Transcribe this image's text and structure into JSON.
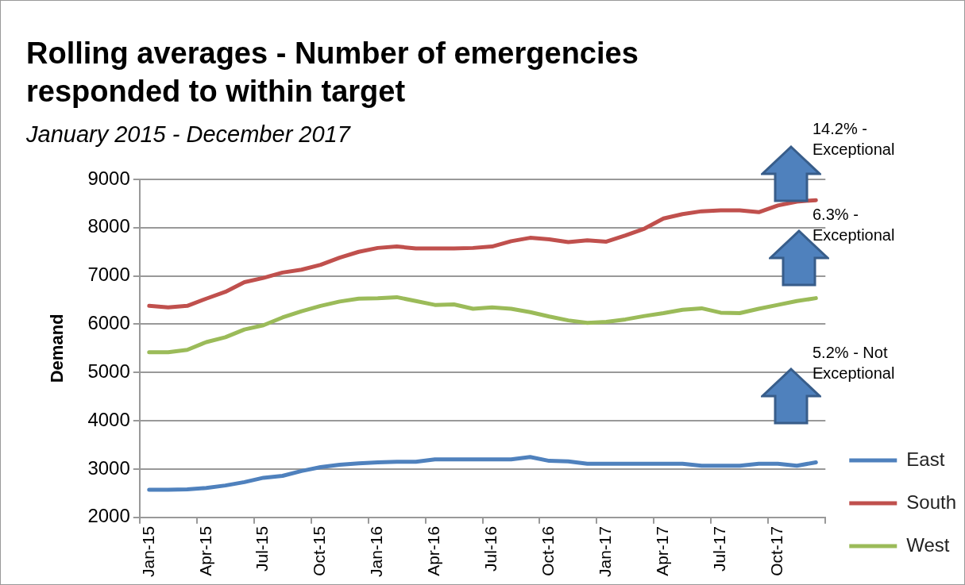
{
  "chart_data": {
    "type": "line",
    "title": "Rolling averages - Number of emergencies responded to within target",
    "subtitle": "January 2015 - December 2017",
    "ylabel": "Demand",
    "categories": [
      "Jan-15",
      null,
      null,
      "Apr-15",
      null,
      null,
      "Jul-15",
      null,
      null,
      "Oct-15",
      null,
      null,
      "Jan-16",
      null,
      null,
      "Apr-16",
      null,
      null,
      "Jul-16",
      null,
      null,
      "Oct-16",
      null,
      null,
      "Jan-17",
      null,
      null,
      "Apr-17",
      null,
      null,
      "Jul-17",
      null,
      null,
      "Oct-17",
      null,
      null
    ],
    "series": [
      {
        "name": "East",
        "color": "#4f81bd",
        "values": [
          2570,
          2570,
          2580,
          2610,
          2660,
          2730,
          2820,
          2860,
          2960,
          3040,
          3090,
          3120,
          3140,
          3150,
          3150,
          3200,
          3200,
          3200,
          3200,
          3200,
          3250,
          3170,
          3160,
          3110,
          3110,
          3110,
          3110,
          3110,
          3110,
          3070,
          3070,
          3070,
          3110,
          3110,
          3070,
          3140
        ]
      },
      {
        "name": "South",
        "color": "#c0504d",
        "values": [
          6380,
          6350,
          6380,
          6530,
          6670,
          6870,
          6960,
          7070,
          7130,
          7230,
          7380,
          7500,
          7580,
          7610,
          7570,
          7570,
          7570,
          7580,
          7610,
          7720,
          7790,
          7760,
          7700,
          7740,
          7710,
          7840,
          7980,
          8190,
          8280,
          8340,
          8360,
          8360,
          8320,
          8460,
          8540,
          8570
        ]
      },
      {
        "name": "West",
        "color": "#9bbb59",
        "values": [
          5420,
          5420,
          5470,
          5630,
          5730,
          5890,
          5980,
          6140,
          6270,
          6380,
          6470,
          6530,
          6540,
          6560,
          6480,
          6400,
          6410,
          6320,
          6350,
          6320,
          6250,
          6160,
          6080,
          6030,
          6050,
          6100,
          6170,
          6230,
          6300,
          6330,
          6240,
          6230,
          6320,
          6400,
          6480,
          6540
        ]
      }
    ],
    "ylim": [
      2000,
      9000
    ],
    "yticks": [
      2000,
      3000,
      4000,
      5000,
      6000,
      7000,
      8000,
      9000
    ],
    "grid": "y",
    "legend": "bottom right",
    "marker": "none",
    "line_style": "solid",
    "annotations": [
      "14.2% - Exceptional",
      "6.3% - Exceptional",
      "5.2% - Not Exceptional"
    ]
  }
}
